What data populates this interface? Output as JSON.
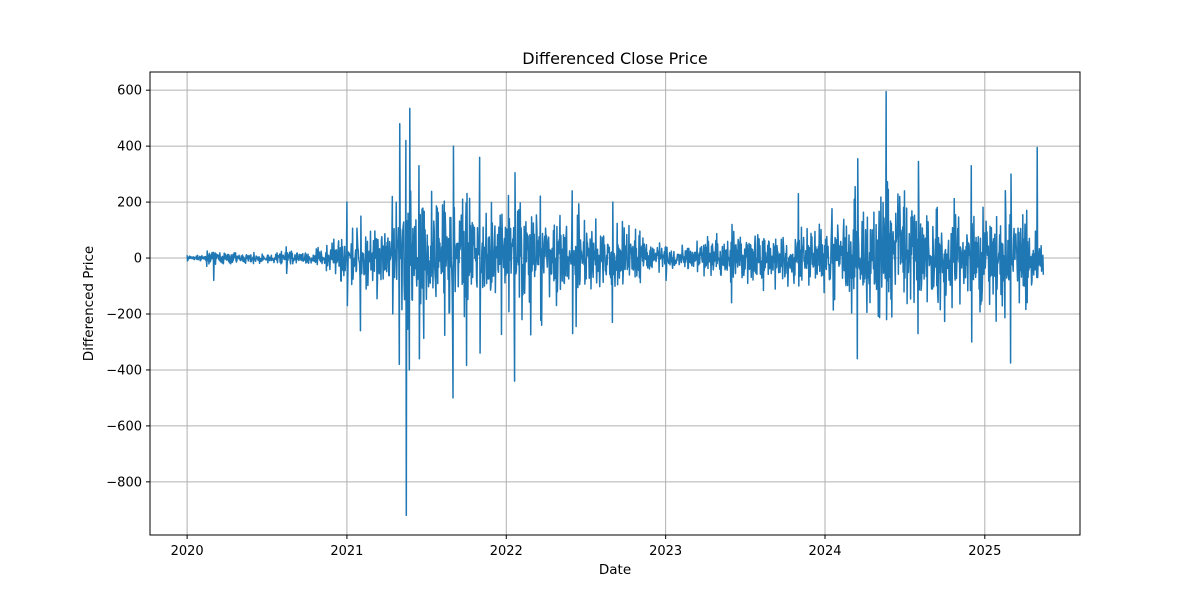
{
  "chart_data": {
    "type": "line",
    "title": "Differenced Close Price",
    "xlabel": "Date",
    "ylabel": "Differenced Price",
    "x_start": "2020-01-01",
    "x_end": "2025-05-15",
    "xlim": [
      "2019-10-08",
      "2025-08-07"
    ],
    "ylim": [
      -990,
      665
    ],
    "x_ticks": [
      {
        "date": "2020-01-01",
        "label": "2020"
      },
      {
        "date": "2021-01-01",
        "label": "2021"
      },
      {
        "date": "2022-01-01",
        "label": "2022"
      },
      {
        "date": "2023-01-01",
        "label": "2023"
      },
      {
        "date": "2024-01-01",
        "label": "2024"
      },
      {
        "date": "2025-01-01",
        "label": "2025"
      }
    ],
    "y_ticks": [
      {
        "value": 600,
        "label": "600"
      },
      {
        "value": 400,
        "label": "400"
      },
      {
        "value": 200,
        "label": "200"
      },
      {
        "value": 0,
        "label": "0"
      },
      {
        "value": -200,
        "label": "−200"
      },
      {
        "value": -400,
        "label": "−400"
      },
      {
        "value": -600,
        "label": "−600"
      },
      {
        "value": -800,
        "label": "−800"
      }
    ],
    "grid": true,
    "series": [
      {
        "color": "#1f77b4",
        "envelope": [
          {
            "date": "2020-01-01",
            "max": 10,
            "min": -10
          },
          {
            "date": "2020-02-15",
            "max": 25,
            "min": -30
          },
          {
            "date": "2020-03-01",
            "max": 20,
            "min": -80
          },
          {
            "date": "2020-06-01",
            "max": 20,
            "min": -20
          },
          {
            "date": "2020-08-15",
            "max": 40,
            "min": -55
          },
          {
            "date": "2020-11-15",
            "max": 45,
            "min": -45
          },
          {
            "date": "2021-01-01",
            "max": 200,
            "min": -170
          },
          {
            "date": "2021-02-01",
            "max": 150,
            "min": -260
          },
          {
            "date": "2021-04-15",
            "max": 220,
            "min": -200
          },
          {
            "date": "2021-05-01",
            "max": 480,
            "min": -380
          },
          {
            "date": "2021-05-16",
            "max": 420,
            "min": -920
          },
          {
            "date": "2021-05-24",
            "max": 535,
            "min": -400
          },
          {
            "date": "2021-06-15",
            "max": 330,
            "min": -360
          },
          {
            "date": "2021-09-01",
            "max": 400,
            "min": -500
          },
          {
            "date": "2021-11-01",
            "max": 360,
            "min": -340
          },
          {
            "date": "2022-01-20",
            "max": 305,
            "min": -440
          },
          {
            "date": "2022-06-01",
            "max": 240,
            "min": -270
          },
          {
            "date": "2022-09-01",
            "max": 200,
            "min": -230
          },
          {
            "date": "2023-01-01",
            "max": 40,
            "min": -80
          },
          {
            "date": "2023-06-01",
            "max": 120,
            "min": -160
          },
          {
            "date": "2023-11-01",
            "max": 230,
            "min": -100
          },
          {
            "date": "2024-03-15",
            "max": 355,
            "min": -360
          },
          {
            "date": "2024-05-20",
            "max": 595,
            "min": -220
          },
          {
            "date": "2024-08-01",
            "max": 345,
            "min": -270
          },
          {
            "date": "2024-12-01",
            "max": 330,
            "min": -300
          },
          {
            "date": "2025-03-01",
            "max": 300,
            "min": -375
          },
          {
            "date": "2025-05-01",
            "max": 395,
            "min": -70
          },
          {
            "date": "2025-05-15",
            "max": 30,
            "min": -60
          }
        ]
      }
    ]
  }
}
